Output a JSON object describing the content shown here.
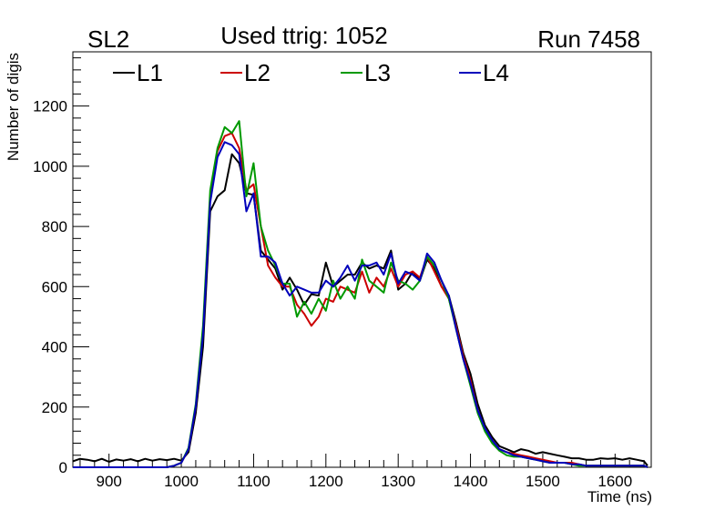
{
  "header": {
    "left": "SL2",
    "center": "Used ttrig: 1052",
    "right": "Run 7458"
  },
  "chart_data": {
    "type": "line",
    "xlabel": "Time (ns)",
    "ylabel": "Number of digis",
    "xlim": [
      850,
      1650
    ],
    "ylim": [
      0,
      1380
    ],
    "x_ticks": [
      900,
      1000,
      1100,
      1200,
      1300,
      1400,
      1500,
      1600
    ],
    "y_ticks": [
      0,
      200,
      400,
      600,
      800,
      1000,
      1200
    ],
    "legend_position": "top",
    "grid": false,
    "x": [
      850,
      860,
      870,
      880,
      890,
      900,
      910,
      920,
      930,
      940,
      950,
      960,
      970,
      980,
      990,
      1000,
      1010,
      1020,
      1030,
      1040,
      1050,
      1060,
      1070,
      1080,
      1090,
      1100,
      1110,
      1120,
      1130,
      1140,
      1150,
      1160,
      1170,
      1180,
      1190,
      1200,
      1210,
      1220,
      1230,
      1240,
      1250,
      1260,
      1270,
      1280,
      1290,
      1300,
      1310,
      1320,
      1330,
      1340,
      1350,
      1360,
      1370,
      1380,
      1390,
      1400,
      1410,
      1420,
      1430,
      1440,
      1450,
      1460,
      1470,
      1480,
      1490,
      1500,
      1510,
      1520,
      1530,
      1540,
      1550,
      1560,
      1570,
      1580,
      1590,
      1600,
      1610,
      1620,
      1630,
      1640,
      1645
    ],
    "series": [
      {
        "name": "L1",
        "color": "#000000",
        "values": [
          20,
          28,
          25,
          20,
          28,
          18,
          26,
          22,
          27,
          20,
          28,
          22,
          27,
          24,
          28,
          22,
          50,
          180,
          400,
          850,
          900,
          920,
          1040,
          1010,
          910,
          905,
          720,
          690,
          660,
          590,
          630,
          590,
          540,
          575,
          570,
          680,
          600,
          620,
          640,
          640,
          680,
          660,
          670,
          660,
          720,
          590,
          610,
          650,
          620,
          690,
          660,
          600,
          570,
          480,
          380,
          310,
          210,
          140,
          100,
          70,
          60,
          50,
          60,
          55,
          45,
          50,
          45,
          40,
          35,
          30,
          30,
          25,
          25,
          30,
          28,
          30,
          25,
          30,
          25,
          20,
          5
        ]
      },
      {
        "name": "L2",
        "color": "#cc0000",
        "values": [
          0,
          0,
          0,
          0,
          0,
          0,
          0,
          0,
          0,
          0,
          0,
          0,
          0,
          0,
          5,
          15,
          60,
          200,
          450,
          900,
          1050,
          1100,
          1110,
          1060,
          920,
          940,
          800,
          670,
          630,
          600,
          600,
          540,
          510,
          470,
          500,
          560,
          550,
          600,
          590,
          580,
          650,
          580,
          630,
          600,
          660,
          600,
          640,
          650,
          630,
          700,
          650,
          600,
          560,
          470,
          370,
          290,
          190,
          130,
          90,
          60,
          50,
          45,
          40,
          35,
          30,
          25,
          20,
          15,
          15,
          15,
          10,
          5,
          5,
          5,
          5,
          5,
          5,
          5,
          5,
          5,
          0
        ]
      },
      {
        "name": "L3",
        "color": "#009900",
        "values": [
          0,
          0,
          0,
          0,
          0,
          0,
          0,
          0,
          0,
          0,
          0,
          0,
          0,
          0,
          5,
          15,
          65,
          210,
          470,
          920,
          1060,
          1130,
          1110,
          1150,
          900,
          1010,
          800,
          720,
          670,
          610,
          610,
          500,
          550,
          510,
          560,
          520,
          620,
          560,
          600,
          560,
          690,
          620,
          600,
          580,
          680,
          620,
          610,
          590,
          620,
          700,
          670,
          620,
          560,
          460,
          360,
          270,
          180,
          120,
          80,
          55,
          40,
          35,
          35,
          30,
          25,
          20,
          15,
          15,
          15,
          10,
          5,
          5,
          5,
          5,
          5,
          5,
          5,
          5,
          5,
          5,
          0
        ]
      },
      {
        "name": "L4",
        "color": "#0000bb",
        "values": [
          0,
          0,
          0,
          0,
          0,
          0,
          0,
          0,
          0,
          0,
          0,
          0,
          0,
          0,
          5,
          15,
          60,
          200,
          440,
          880,
          1030,
          1080,
          1070,
          1040,
          850,
          910,
          700,
          700,
          680,
          610,
          570,
          600,
          590,
          580,
          580,
          620,
          600,
          630,
          670,
          620,
          670,
          670,
          680,
          640,
          710,
          610,
          650,
          640,
          620,
          710,
          680,
          620,
          570,
          460,
          360,
          280,
          190,
          130,
          90,
          60,
          50,
          40,
          35,
          30,
          25,
          20,
          15,
          15,
          15,
          10,
          10,
          5,
          5,
          5,
          5,
          5,
          5,
          5,
          5,
          5,
          0
        ]
      }
    ]
  }
}
